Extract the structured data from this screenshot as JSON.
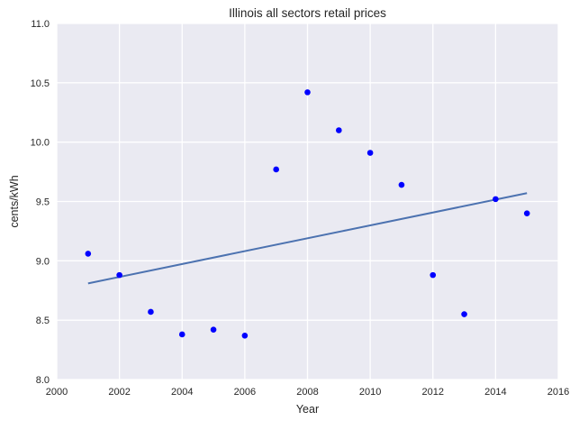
{
  "chart_data": {
    "type": "scatter",
    "title": "Illinois   all sectors retail prices",
    "xlabel": "Year",
    "ylabel": "cents/kWh",
    "xlim": [
      2000,
      2016
    ],
    "ylim": [
      8.0,
      11.0
    ],
    "xticks": [
      2000,
      2002,
      2004,
      2006,
      2008,
      2010,
      2012,
      2014,
      2016
    ],
    "yticks": [
      "8.0",
      "8.5",
      "9.0",
      "9.5",
      "10.0",
      "10.5",
      "11.0"
    ],
    "grid": true,
    "series": [
      {
        "type": "scatter",
        "x": [
          2001,
          2002,
          2003,
          2004,
          2005,
          2006,
          2007,
          2008,
          2009,
          2010,
          2011,
          2012,
          2013,
          2014,
          2015
        ],
        "y": [
          9.06,
          8.88,
          8.57,
          8.38,
          8.42,
          8.37,
          9.77,
          10.42,
          10.1,
          9.91,
          9.64,
          8.88,
          8.55,
          9.52,
          9.4
        ],
        "color": "#0000ff"
      },
      {
        "type": "line",
        "x": [
          2001,
          2015
        ],
        "y": [
          8.81,
          9.57
        ],
        "color": "#4c72b0"
      }
    ],
    "background_color": "#eaeaf2",
    "grid_color": "#ffffff"
  }
}
